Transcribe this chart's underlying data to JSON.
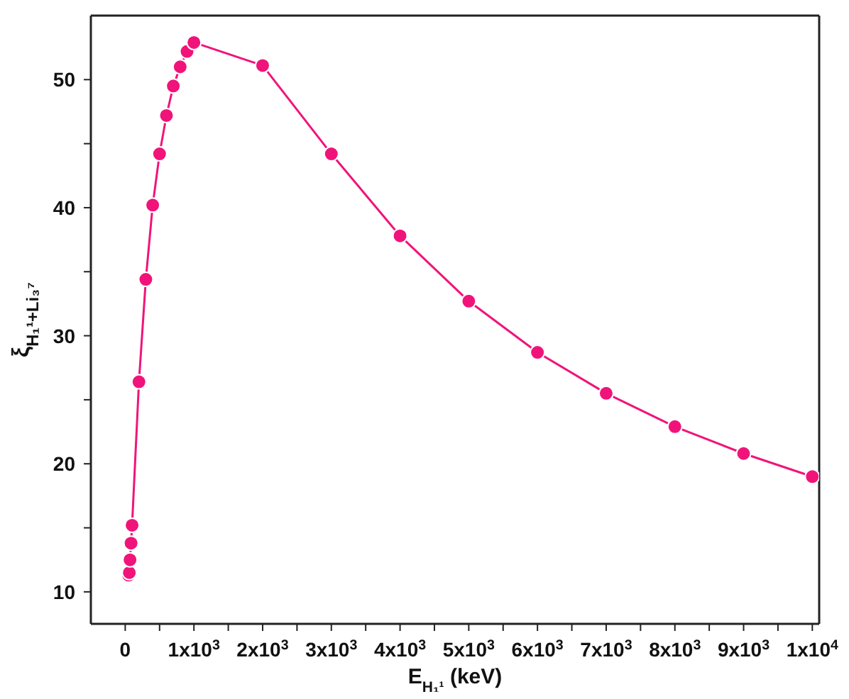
{
  "chart_data": {
    "type": "line",
    "xlabel": "E$_{H₁¹}$ (keV)",
    "ylabel": "ξ$_{H₁¹+Li₃⁷}$",
    "x": [
      50,
      60,
      70,
      85,
      100,
      200,
      300,
      400,
      500,
      600,
      700,
      800,
      900,
      1000,
      2000,
      3000,
      4000,
      5000,
      6000,
      7000,
      8000,
      9000,
      10000
    ],
    "series": [
      {
        "color": "#f0147a",
        "values": [
          11.3,
          11.5,
          12.5,
          13.8,
          15.2,
          26.4,
          34.4,
          40.2,
          44.2,
          47.2,
          49.5,
          51.0,
          52.2,
          52.9,
          51.1,
          44.2,
          37.8,
          32.7,
          28.7,
          25.5,
          22.9,
          20.8,
          19.0
        ]
      }
    ],
    "xlim": [
      -500,
      10100
    ],
    "xticks": [
      {
        "value": 0,
        "label": "0"
      },
      {
        "value": 500,
        "label": null
      },
      {
        "value": 1000,
        "label": "1x10$^{3}$"
      },
      {
        "value": 1500,
        "label": null
      },
      {
        "value": 2000,
        "label": "2x10$^{3}$"
      },
      {
        "value": 2500,
        "label": null
      },
      {
        "value": 3000,
        "label": "3x10$^{3}$"
      },
      {
        "value": 3500,
        "label": null
      },
      {
        "value": 4000,
        "label": "4x10$^{3}$"
      },
      {
        "value": 4500,
        "label": null
      },
      {
        "value": 5000,
        "label": "5x10$^{3}$"
      },
      {
        "value": 5500,
        "label": null
      },
      {
        "value": 6000,
        "label": "6x10$^{3}$"
      },
      {
        "value": 6500,
        "label": null
      },
      {
        "value": 7000,
        "label": "7x10$^{3}$"
      },
      {
        "value": 7500,
        "label": null
      },
      {
        "value": 8000,
        "label": "8x10$^{3}$"
      },
      {
        "value": 8500,
        "label": null
      },
      {
        "value": 9000,
        "label": "9x10$^{3}$"
      },
      {
        "value": 9500,
        "label": null
      },
      {
        "value": 10000,
        "label": "1x10$^{4}$"
      }
    ],
    "ylim": [
      7.5,
      55
    ],
    "yticks": [
      10,
      {
        "value": 15,
        "label": null
      },
      20,
      {
        "value": 25,
        "label": null
      },
      30,
      {
        "value": 35,
        "label": null
      },
      40,
      {
        "value": 45,
        "label": null
      },
      50
    ],
    "marker": "circle",
    "line_style": "solid",
    "grid": false,
    "legend": false
  }
}
